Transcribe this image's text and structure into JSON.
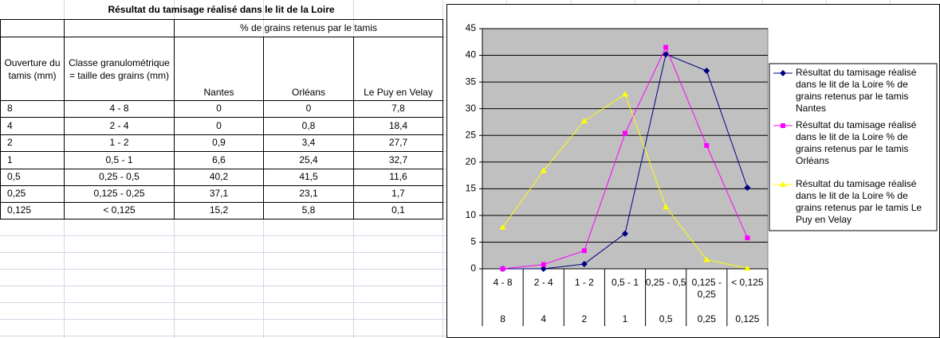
{
  "table": {
    "title": "Résultat du tamisage réalisé dans le lit de la Loire",
    "group_header": "% de grains retenus par le tamis",
    "columns": [
      "Ouverture du tamis (mm)",
      "Classe granulométrique = taille des grains (mm)",
      "Nantes",
      "Orléans",
      "Le Puy en Velay"
    ],
    "rows": [
      [
        "8",
        "4 - 8",
        "0",
        "0",
        "7,8"
      ],
      [
        "4",
        "2 - 4",
        "0",
        "0,8",
        "18,4"
      ],
      [
        "2",
        "1 - 2",
        "0,9",
        "3,4",
        "27,7"
      ],
      [
        "1",
        "0,5 - 1",
        "6,6",
        "25,4",
        "32,7"
      ],
      [
        "0,5",
        "0,25 - 0,5",
        "40,2",
        "41,5",
        "11,6"
      ],
      [
        "0,25",
        "0,125 - 0,25",
        "37,1",
        "23,1",
        "1,7"
      ],
      [
        "0,125",
        "< 0,125",
        "15,2",
        "5,8",
        "0,1"
      ]
    ]
  },
  "chart_data": {
    "type": "line",
    "categories": [
      "4 - 8",
      "2 - 4",
      "1 - 2",
      "0,5 - 1",
      "0,25 - 0,5",
      "0,125 - 0,25",
      "< 0,125"
    ],
    "sub_categories": [
      "8",
      "4",
      "2",
      "1",
      "0,5",
      "0,25",
      "0,125"
    ],
    "series": [
      {
        "name": "Résultat du tamisage réalisé dans le lit de la Loire % de grains retenus par le tamis Nantes",
        "color": "#000080",
        "marker": "diamond",
        "values": [
          0,
          0,
          0.9,
          6.6,
          40.2,
          37.1,
          15.2
        ]
      },
      {
        "name": "Résultat du tamisage réalisé dans le lit de la Loire % de grains retenus par le tamis Orléans",
        "color": "#ff00ff",
        "marker": "square",
        "values": [
          0,
          0.8,
          3.4,
          25.4,
          41.5,
          23.1,
          5.8
        ]
      },
      {
        "name": "Résultat du tamisage réalisé dans le lit de la Loire % de grains retenus par le tamis Le Puy en Velay",
        "color": "#ffff00",
        "marker": "triangle",
        "values": [
          7.8,
          18.4,
          27.7,
          32.7,
          11.6,
          1.7,
          0.1
        ]
      }
    ],
    "ylim": [
      0,
      45
    ],
    "yticks": [
      0,
      5,
      10,
      15,
      20,
      25,
      30,
      35,
      40,
      45
    ],
    "grid": true,
    "plot_background": "#c0c0c0",
    "legend": "right"
  }
}
